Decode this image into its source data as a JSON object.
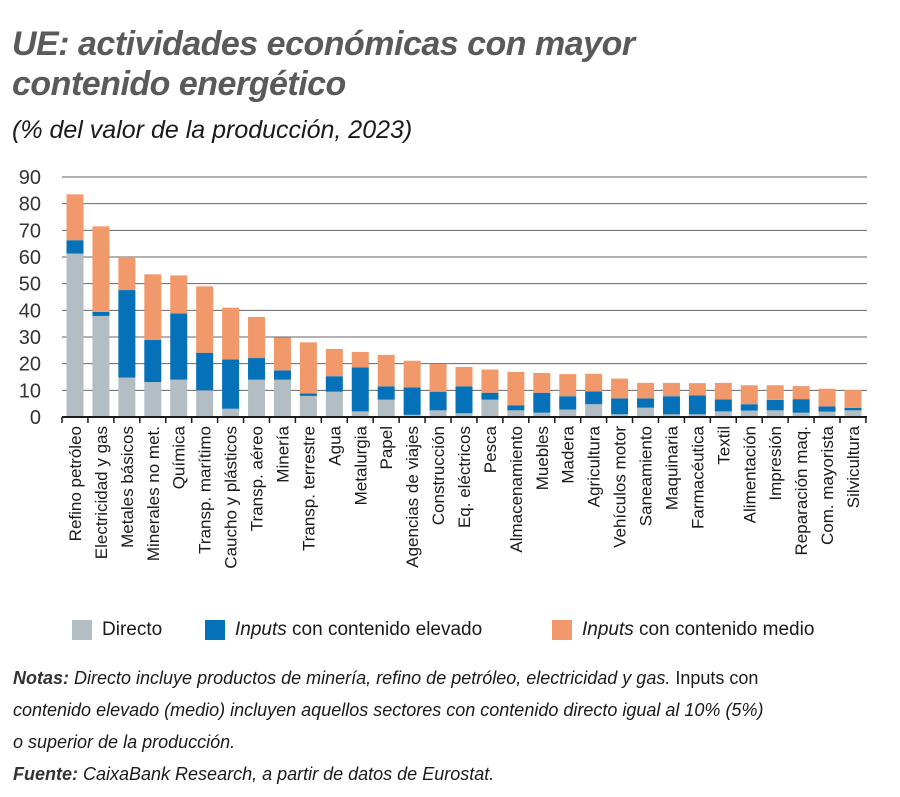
{
  "title_line1": "UE: actividades económicas con mayor",
  "title_line2": "contenido energético",
  "subtitle": "(% del valor de la producción, 2023)",
  "colors": {
    "directo": "#b2bec3",
    "elevado": "#0571b8",
    "medio": "#f2996b"
  },
  "chart_data": {
    "type": "bar",
    "stacked": true,
    "title": "UE: actividades económicas con mayor contenido energético",
    "ylabel": "% del valor de la producción, 2023",
    "ylim": [
      0,
      90
    ],
    "yticks": [
      "0",
      "10",
      "20",
      "30",
      "40",
      "50",
      "60",
      "70",
      "80",
      "90"
    ],
    "grid": true,
    "legend_placement": "bottom",
    "categories": [
      "Refino petróleo",
      "Electricidad y gas",
      "Metales básicos",
      "Minerales no met.",
      "Química",
      "Transp. marítimo",
      "Caucho y plásticos",
      "Transp. aéreo",
      "Minería",
      "Transp. terrestre",
      "Agua",
      "Metalurgia",
      "Papel",
      "Agencias de viajes",
      "Construcción",
      "Eq. eléctricos",
      "Pesca",
      "Almacenamiento",
      "Muebles",
      "Madera",
      "Agricultura",
      "Vehículos motor",
      "Saneamiento",
      "Maquinaria",
      "Farmacéutica",
      "Textil",
      "Alimentación",
      "Impresión",
      "Reparación maq.",
      "Com. mayorista",
      "Silvicultura"
    ],
    "series": [
      {
        "name": "Directo",
        "values": [
          61.3,
          37.9,
          14.8,
          13.1,
          14.0,
          10.0,
          3.1,
          14.0,
          14.0,
          7.9,
          9.5,
          2.1,
          6.5,
          0.8,
          2.5,
          1.4,
          6.5,
          2.5,
          1.6,
          2.8,
          4.8,
          1.0,
          3.5,
          1.0,
          1.0,
          2.1,
          2.4,
          2.5,
          1.6,
          2.0,
          2.5
        ]
      },
      {
        "name": "Inputs con contenido elevado",
        "values": [
          5.0,
          1.5,
          32.8,
          15.8,
          24.8,
          14.1,
          18.5,
          8.1,
          3.5,
          0.9,
          5.8,
          16.5,
          5.0,
          10.3,
          7.0,
          10.1,
          2.6,
          1.9,
          7.5,
          5.0,
          4.8,
          6.0,
          3.5,
          6.8,
          7.1,
          4.5,
          2.4,
          3.9,
          5.1,
          2.0,
          0.9
        ]
      },
      {
        "name": "Inputs con contenido medio",
        "values": [
          17.2,
          32.1,
          12.4,
          24.6,
          14.3,
          24.9,
          19.4,
          15.4,
          12.3,
          19.2,
          10.2,
          5.8,
          11.8,
          10.0,
          10.4,
          7.3,
          8.7,
          12.5,
          7.4,
          8.3,
          6.6,
          7.4,
          5.8,
          5.0,
          4.6,
          6.2,
          7.1,
          5.5,
          4.9,
          6.6,
          6.7
        ]
      }
    ]
  },
  "legend": {
    "directo": "Directo",
    "elevado_em": "Inputs",
    "elevado_rest": " con contenido elevado",
    "medio_em": "Inputs",
    "medio_rest": " con contenido medio"
  },
  "notes": {
    "label": "Notas:",
    "line1_a": " Directo incluye productos de minería, refino de petróleo, electricidad y gas.",
    "line1_b": " Inputs con",
    "line2": "contenido elevado (medio) incluyen aquellos sectores con contenido directo igual al 10% (5%)",
    "line3": "o superior de la producción.",
    "source_label": "Fuente:",
    "source": " CaixaBank Research, a partir de datos de Eurostat."
  }
}
